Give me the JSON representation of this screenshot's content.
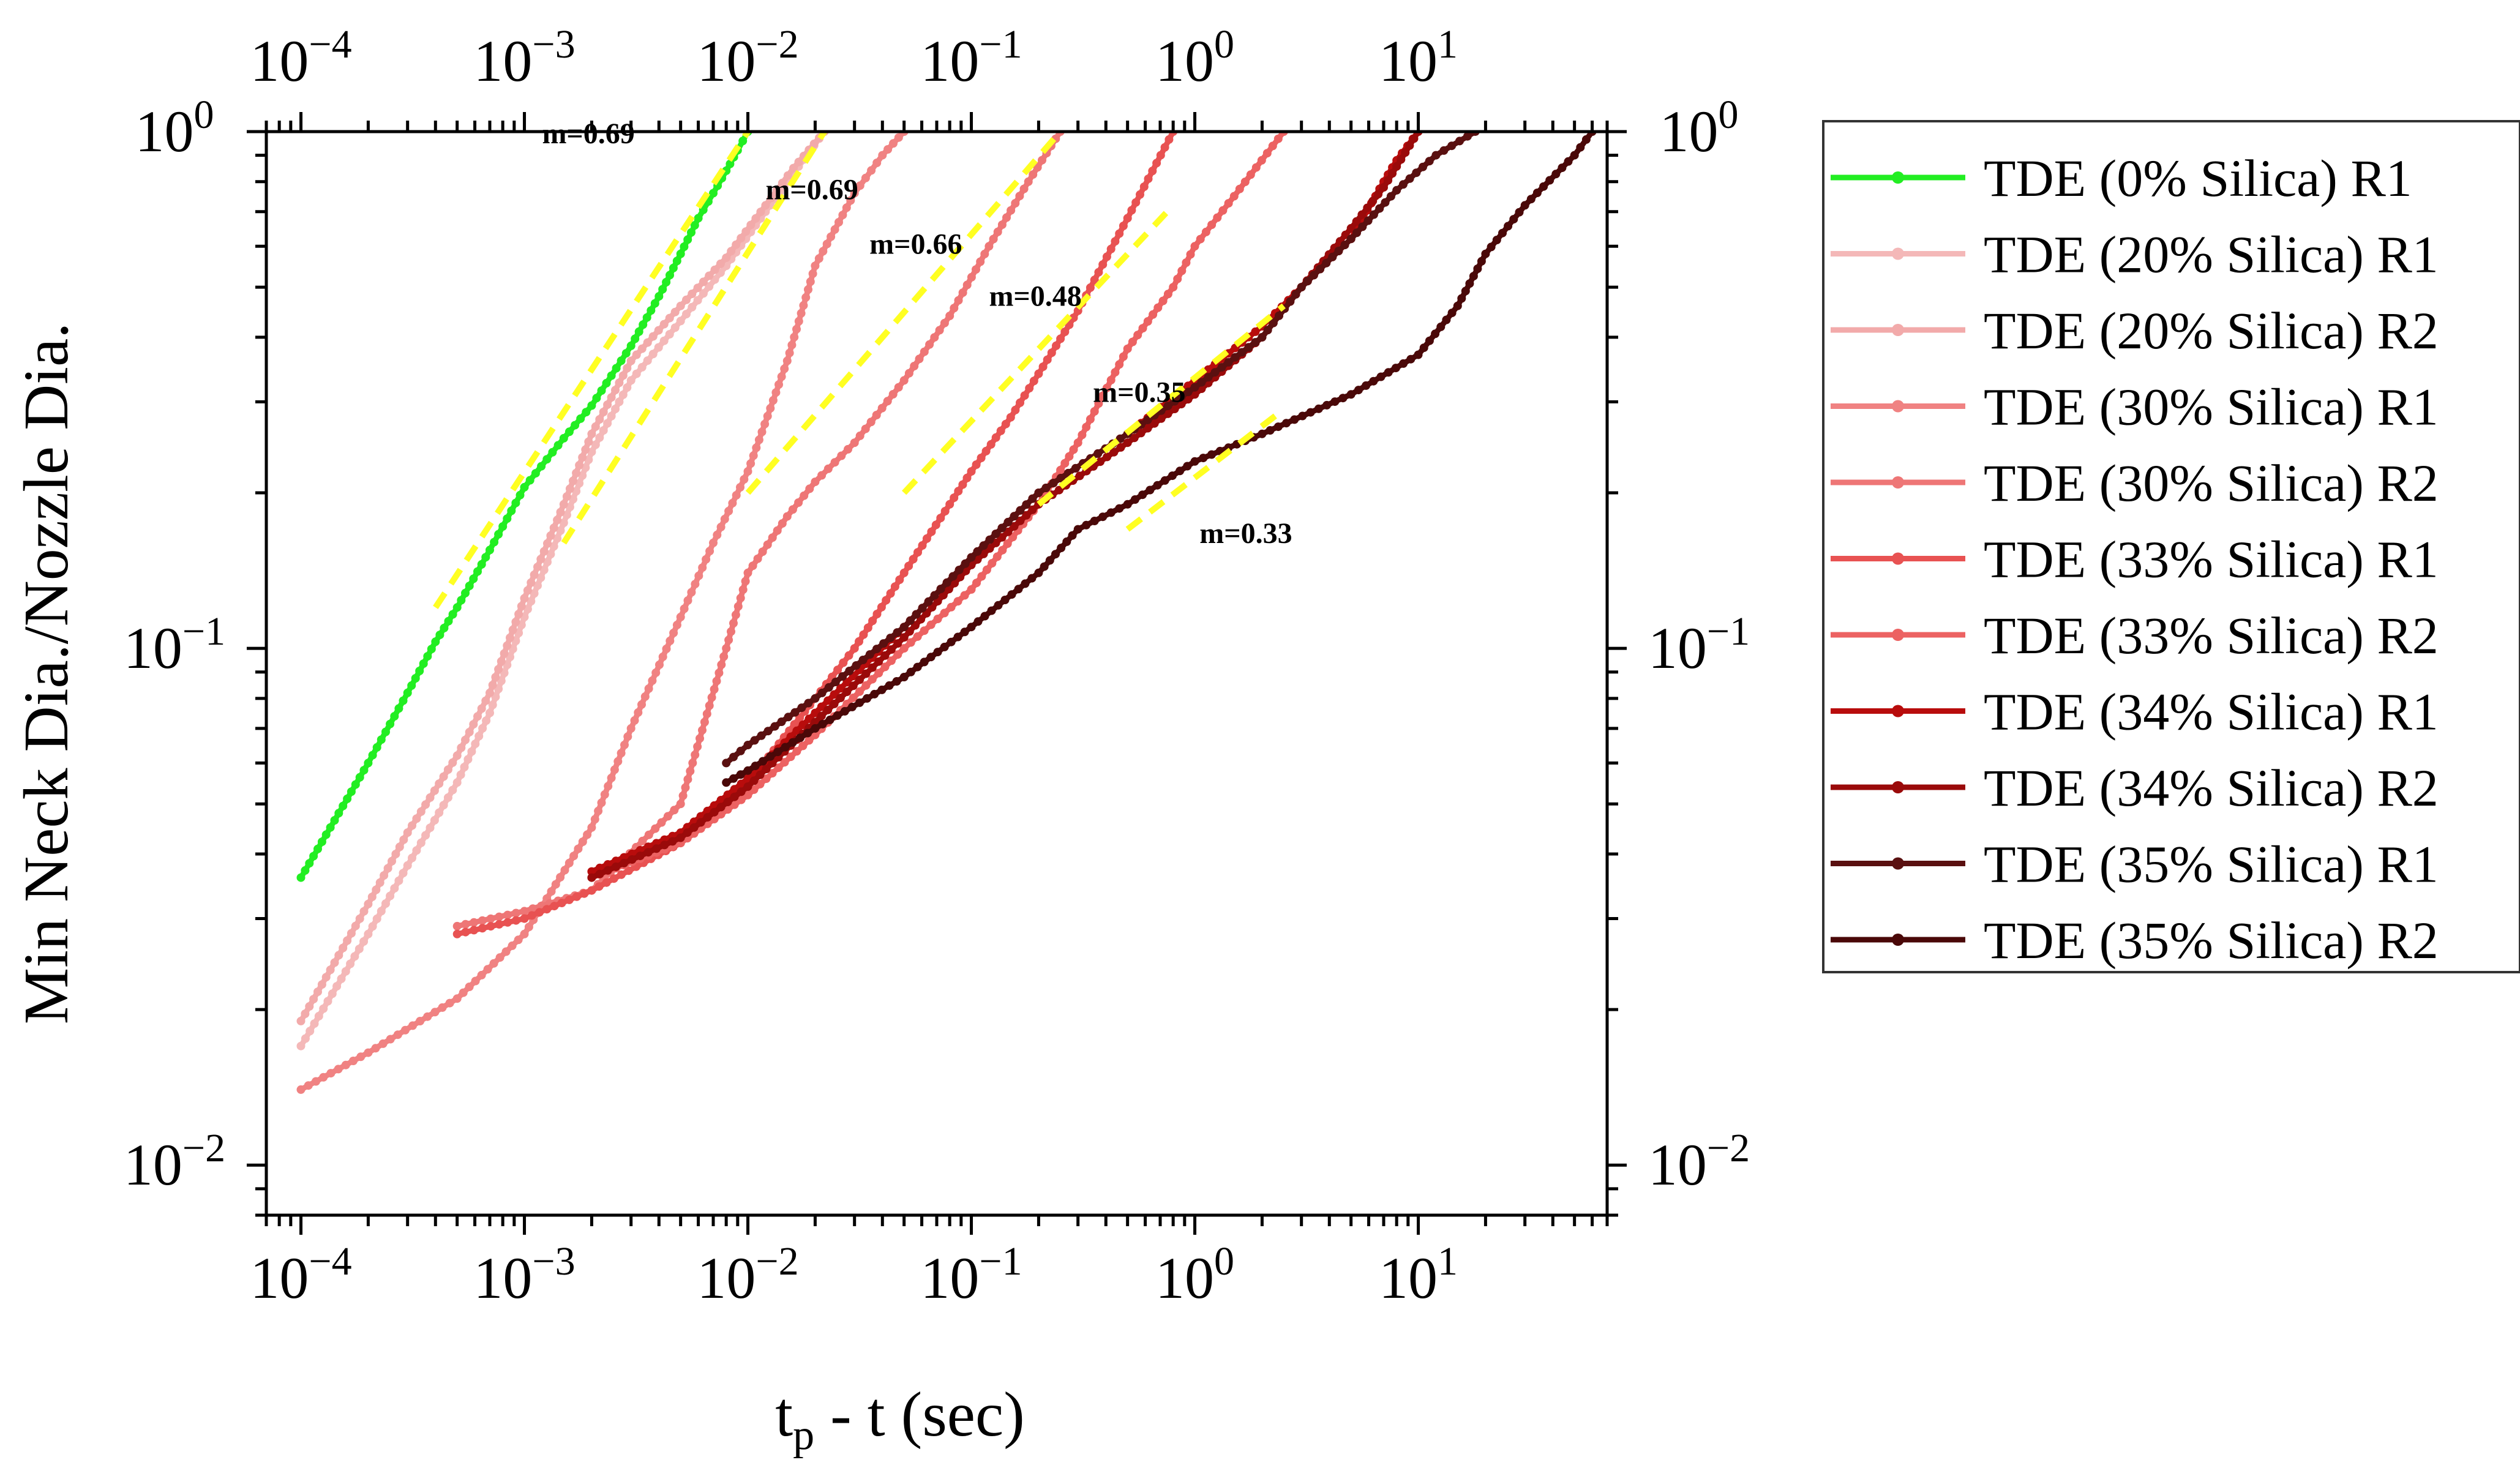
{
  "chart_data": {
    "type": "line",
    "xscale": "log",
    "yscale": "log",
    "xlabel": "t",
    "xlabel_sub": "p",
    "xlabel_suffix": " - t (sec)",
    "ylabel": "Min Neck Dia./Nozzle Dia.",
    "xlim": [
      7e-05,
      70
    ],
    "ylim": [
      0.008,
      1.0
    ],
    "x_ticks": [
      {
        "base": "10",
        "exp": "−4",
        "value": 0.0001
      },
      {
        "base": "10",
        "exp": "−3",
        "value": 0.001
      },
      {
        "base": "10",
        "exp": "−2",
        "value": 0.01
      },
      {
        "base": "10",
        "exp": "−1",
        "value": 0.1
      },
      {
        "base": "10",
        "exp": "0",
        "value": 1
      },
      {
        "base": "10",
        "exp": "1",
        "value": 10
      }
    ],
    "y_ticks": [
      {
        "base": "10",
        "exp": "−2",
        "value": 0.01
      },
      {
        "base": "10",
        "exp": "−1",
        "value": 0.1
      },
      {
        "base": "10",
        "exp": "0",
        "value": 1
      }
    ],
    "legend_position": "outside-right",
    "series": [
      {
        "name": "TDE (0% Silica) R1",
        "color": "#22ee22",
        "x": [
          0.0001,
          0.0002,
          0.0003,
          0.0004,
          0.0005,
          0.0007,
          0.001,
          0.0015,
          0.002,
          0.003,
          0.004,
          0.005,
          0.006,
          0.007,
          0.008,
          0.009,
          0.01
        ],
        "y": [
          0.036,
          0.06,
          0.082,
          0.103,
          0.12,
          0.155,
          0.205,
          0.255,
          0.295,
          0.385,
          0.48,
          0.58,
          0.68,
          0.76,
          0.84,
          0.92,
          1.0
        ]
      },
      {
        "name": "TDE (20% Silica) R1",
        "color": "#f4b8b8",
        "x": [
          0.0001,
          0.0002,
          0.0003,
          0.0005,
          0.0007,
          0.001,
          0.0015,
          0.002,
          0.003,
          0.005,
          0.008,
          0.012,
          0.016,
          0.022
        ],
        "y": [
          0.017,
          0.028,
          0.038,
          0.055,
          0.075,
          0.115,
          0.175,
          0.24,
          0.33,
          0.43,
          0.55,
          0.7,
          0.83,
          1.0
        ]
      },
      {
        "name": "TDE (20% Silica) R2",
        "color": "#f2aaaa",
        "x": [
          0.0001,
          0.0002,
          0.0003,
          0.0005,
          0.0007,
          0.001,
          0.0015,
          0.002,
          0.003,
          0.005,
          0.008,
          0.012,
          0.016,
          0.022
        ],
        "y": [
          0.019,
          0.032,
          0.044,
          0.062,
          0.082,
          0.125,
          0.19,
          0.26,
          0.36,
          0.46,
          0.57,
          0.72,
          0.85,
          1.0
        ]
      },
      {
        "name": "TDE (30% Silica) R1",
        "color": "#f08282",
        "x": [
          0.0001,
          0.0002,
          0.0005,
          0.001,
          0.002,
          0.003,
          0.005,
          0.007,
          0.01,
          0.015,
          0.02,
          0.03,
          0.04,
          0.05
        ],
        "y": [
          0.014,
          0.0165,
          0.021,
          0.028,
          0.045,
          0.07,
          0.115,
          0.16,
          0.22,
          0.36,
          0.55,
          0.76,
          0.9,
          1.0
        ]
      },
      {
        "name": "TDE (30% Silica) R2",
        "color": "#ee7676",
        "x": [
          0.0005,
          0.001,
          0.002,
          0.005,
          0.008,
          0.01,
          0.015,
          0.02,
          0.03,
          0.05,
          0.08,
          0.12,
          0.18,
          0.25
        ],
        "y": [
          0.029,
          0.031,
          0.034,
          0.05,
          0.1,
          0.14,
          0.18,
          0.21,
          0.25,
          0.33,
          0.44,
          0.6,
          0.8,
          1.0
        ]
      },
      {
        "name": "TDE (33% Silica) R1",
        "color": "#e85252",
        "x": [
          0.0005,
          0.001,
          0.002,
          0.005,
          0.01,
          0.02,
          0.03,
          0.05,
          0.08,
          0.1,
          0.15,
          0.2,
          0.3,
          0.5,
          0.8
        ],
        "y": [
          0.028,
          0.03,
          0.034,
          0.042,
          0.055,
          0.08,
          0.1,
          0.14,
          0.19,
          0.22,
          0.28,
          0.34,
          0.45,
          0.68,
          1.0
        ]
      },
      {
        "name": "TDE (33% Silica) R2",
        "color": "#ec6262",
        "x": [
          0.002,
          0.005,
          0.01,
          0.02,
          0.05,
          0.1,
          0.2,
          0.3,
          0.5,
          0.8,
          1.0,
          1.5,
          2.5
        ],
        "y": [
          0.036,
          0.042,
          0.052,
          0.068,
          0.1,
          0.13,
          0.19,
          0.25,
          0.38,
          0.5,
          0.6,
          0.75,
          1.0
        ]
      },
      {
        "name": "TDE (34% Silica) R1",
        "color": "#b80c0c",
        "x": [
          0.002,
          0.005,
          0.01,
          0.02,
          0.05,
          0.1,
          0.2,
          0.5,
          1.0,
          2.0,
          3.0,
          5.0,
          7.0,
          8.0,
          10.0
        ],
        "y": [
          0.037,
          0.044,
          0.056,
          0.075,
          0.11,
          0.15,
          0.2,
          0.26,
          0.33,
          0.42,
          0.5,
          0.62,
          0.8,
          0.88,
          1.0
        ]
      },
      {
        "name": "TDE (34% Silica) R2",
        "color": "#9a0a0a",
        "x": [
          0.002,
          0.005,
          0.01,
          0.02,
          0.05,
          0.1,
          0.2,
          0.5,
          1.0,
          2.0,
          3.0,
          5.0,
          7.0,
          10.0
        ],
        "y": [
          0.036,
          0.043,
          0.054,
          0.072,
          0.105,
          0.145,
          0.19,
          0.25,
          0.31,
          0.4,
          0.5,
          0.65,
          0.78,
          1.0
        ]
      },
      {
        "name": "TDE (35% Silica) R1",
        "color": "#5a1010",
        "x": [
          0.008,
          0.01,
          0.02,
          0.05,
          0.1,
          0.2,
          0.5,
          1.0,
          2.0,
          3.0,
          5.0,
          8.0,
          12.0,
          18.0
        ],
        "y": [
          0.06,
          0.065,
          0.08,
          0.11,
          0.15,
          0.2,
          0.26,
          0.32,
          0.4,
          0.5,
          0.62,
          0.77,
          0.9,
          1.0
        ]
      },
      {
        "name": "TDE (35% Silica) R2",
        "color": "#4a0808",
        "x": [
          0.008,
          0.01,
          0.02,
          0.05,
          0.1,
          0.2,
          0.3,
          0.5,
          1.0,
          2.0,
          5.0,
          10.0,
          15.0,
          20.0,
          30.0,
          50.0,
          60.0
        ],
        "y": [
          0.055,
          0.058,
          0.07,
          0.088,
          0.11,
          0.14,
          0.17,
          0.19,
          0.23,
          0.26,
          0.31,
          0.37,
          0.46,
          0.58,
          0.72,
          0.9,
          1.0
        ]
      }
    ],
    "fits": [
      {
        "label": "m=0.69",
        "x": [
          0.0004,
          0.01
        ],
        "y": [
          0.12,
          1.0
        ],
        "label_at": [
          0.0012,
          0.95
        ]
      },
      {
        "label": "m=0.69",
        "x": [
          0.0015,
          0.022
        ],
        "y": [
          0.16,
          1.0
        ],
        "label_at": [
          0.012,
          0.74
        ]
      },
      {
        "label": "m=0.66",
        "x": [
          0.01,
          0.25
        ],
        "y": [
          0.2,
          1.0
        ],
        "label_at": [
          0.035,
          0.58
        ]
      },
      {
        "label": "m=0.48",
        "x": [
          0.05,
          0.8
        ],
        "y": [
          0.2,
          0.72
        ],
        "label_at": [
          0.12,
          0.46
        ]
      },
      {
        "label": "m=0.35",
        "x": [
          0.2,
          2.5
        ],
        "y": [
          0.19,
          0.46
        ],
        "label_at": [
          0.35,
          0.3
        ]
      },
      {
        "label": "m=0.33",
        "x": [
          0.5,
          2.5
        ],
        "y": [
          0.17,
          0.29
        ],
        "label_at": [
          1.05,
          0.16
        ]
      }
    ],
    "fit_color": "#ffff22",
    "title": ""
  }
}
